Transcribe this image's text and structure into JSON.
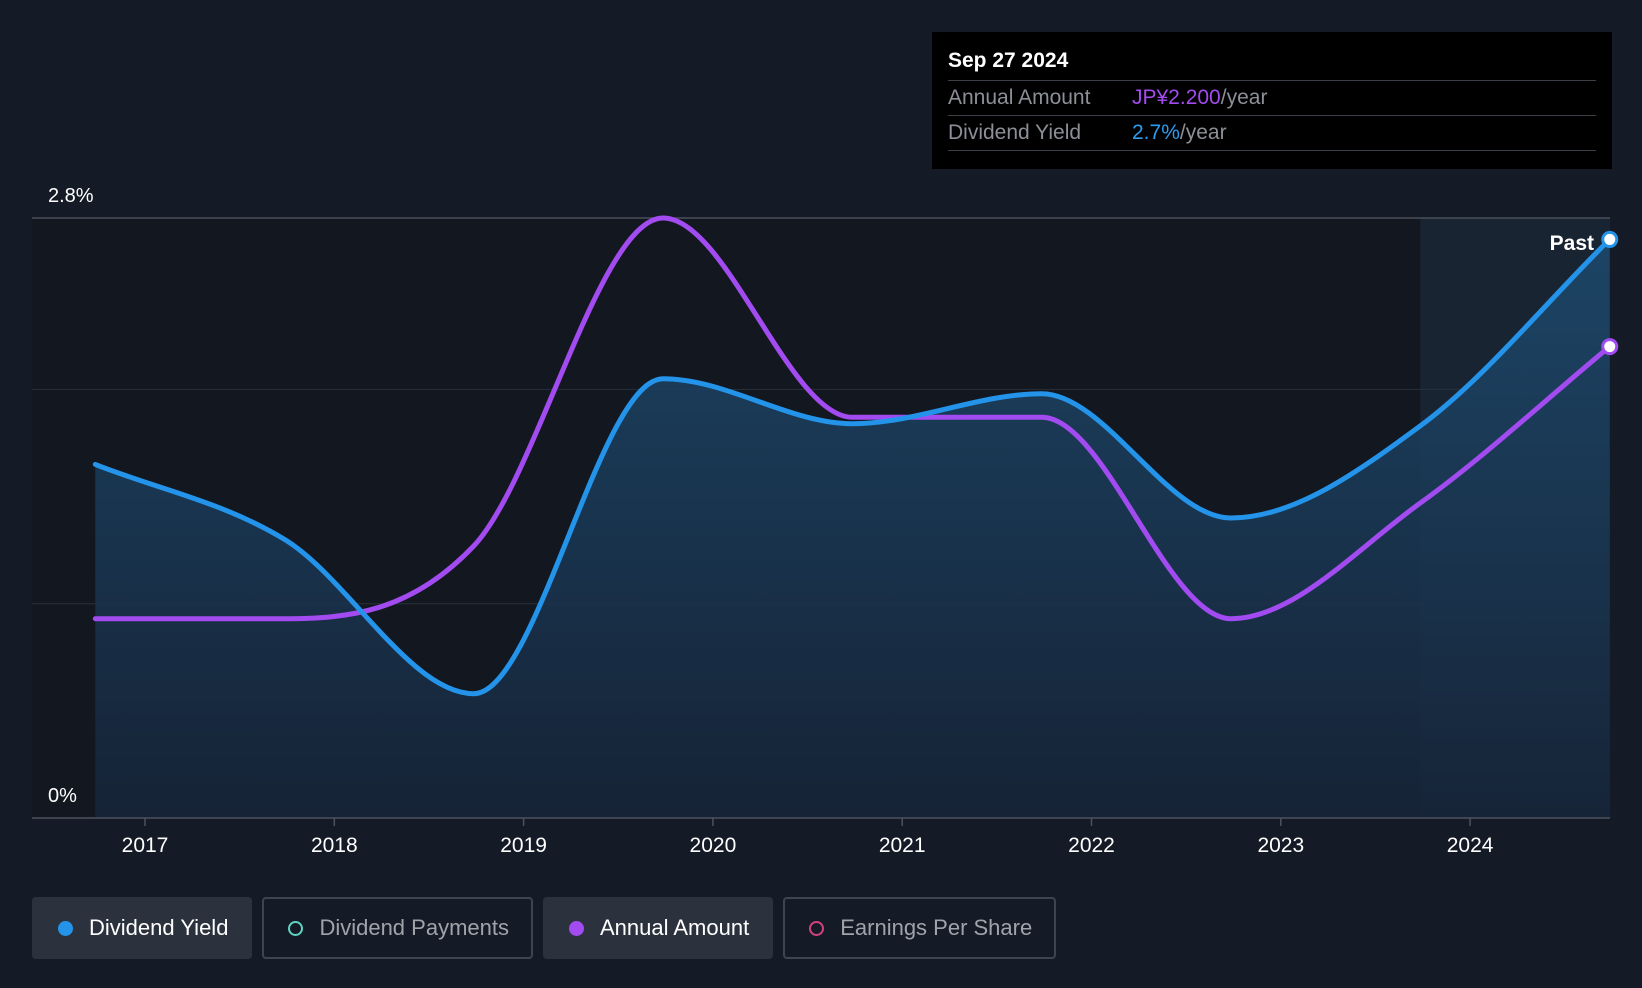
{
  "tooltip": {
    "date": "Sep 27 2024",
    "rows": [
      {
        "label": "Annual Amount",
        "value": "JP¥2.200",
        "unit": "/year",
        "color": "#a24bf0"
      },
      {
        "label": "Dividend Yield",
        "value": "2.7%",
        "unit": "/year",
        "color": "#2c9cf0"
      }
    ]
  },
  "past_label": "Past",
  "legend": [
    {
      "label": "Dividend Yield",
      "color": "#2394ea",
      "filled": true,
      "active": true
    },
    {
      "label": "Dividend Payments",
      "color": "#5fd3c2",
      "filled": false,
      "active": false
    },
    {
      "label": "Annual Amount",
      "color": "#a24bf0",
      "filled": true,
      "active": true
    },
    {
      "label": "Earnings Per Share",
      "color": "#d3427f",
      "filled": false,
      "active": false
    }
  ],
  "chart_data": {
    "type": "line",
    "x_ticks": [
      "2017",
      "2018",
      "2019",
      "2020",
      "2021",
      "2022",
      "2023",
      "2024"
    ],
    "y_tick_labels": [
      "2.8%",
      "0%"
    ],
    "ylim": [
      0,
      2.8
    ],
    "grid": true,
    "series": [
      {
        "name": "Dividend Yield",
        "unit": "%",
        "color": "#2394ea",
        "points": [
          [
            "2016-09-27",
            1.65
          ],
          [
            "2017-09-27",
            1.3
          ],
          [
            "2018-09-27",
            0.58
          ],
          [
            "2019-09-27",
            2.05
          ],
          [
            "2020-09-27",
            1.84
          ],
          [
            "2021-09-27",
            1.98
          ],
          [
            "2022-09-27",
            1.4
          ],
          [
            "2023-09-27",
            1.83
          ],
          [
            "2024-09-27",
            2.7
          ]
        ]
      },
      {
        "name": "Annual Amount",
        "unit": "JP¥",
        "color": "#a24bf0",
        "points": [
          [
            "2016-09-27",
            0.93
          ],
          [
            "2017-09-27",
            0.93
          ],
          [
            "2018-09-27",
            1.27
          ],
          [
            "2019-09-27",
            2.8
          ],
          [
            "2020-09-27",
            1.87
          ],
          [
            "2021-09-27",
            1.87
          ],
          [
            "2022-09-27",
            0.93
          ],
          [
            "2023-09-27",
            1.47
          ],
          [
            "2024-09-27",
            2.2
          ]
        ]
      }
    ],
    "forecast_region": {
      "label": "Past",
      "start": "2023-09-27",
      "end": "2024-09-27"
    }
  }
}
